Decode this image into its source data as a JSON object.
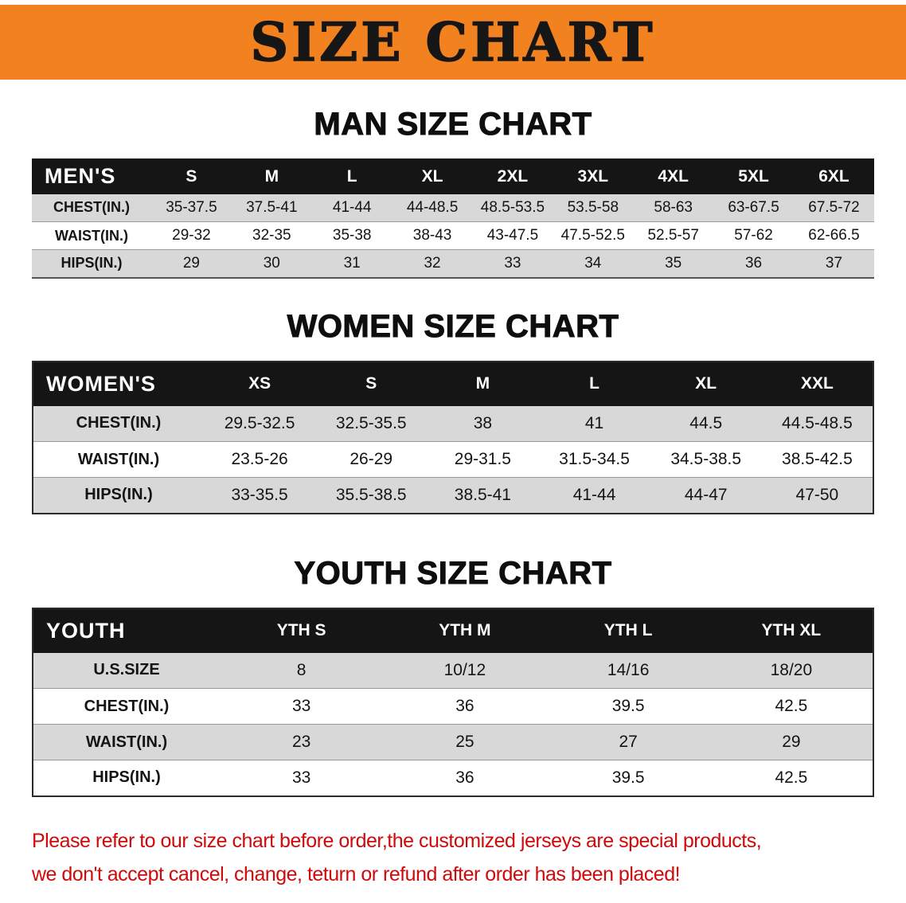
{
  "banner": {
    "title": "SIZE CHART"
  },
  "sections": {
    "men": {
      "heading": "MAN SIZE CHART",
      "table": {
        "header_label": "MEN'S",
        "columns": [
          "S",
          "M",
          "L",
          "XL",
          "2XL",
          "3XL",
          "4XL",
          "5XL",
          "6XL"
        ],
        "rows": [
          {
            "label": "CHEST(IN.)",
            "values": [
              "35-37.5",
              "37.5-41",
              "41-44",
              "44-48.5",
              "48.5-53.5",
              "53.5-58",
              "58-63",
              "63-67.5",
              "67.5-72"
            ]
          },
          {
            "label": "WAIST(IN.)",
            "values": [
              "29-32",
              "32-35",
              "35-38",
              "38-43",
              "43-47.5",
              "47.5-52.5",
              "52.5-57",
              "57-62",
              "62-66.5"
            ]
          },
          {
            "label": "HIPS(IN.)",
            "values": [
              "29",
              "30",
              "31",
              "32",
              "33",
              "34",
              "35",
              "36",
              "37"
            ]
          }
        ]
      }
    },
    "women": {
      "heading": "WOMEN SIZE CHART",
      "table": {
        "header_label": "WOMEN'S",
        "columns": [
          "XS",
          "S",
          "M",
          "L",
          "XL",
          "XXL"
        ],
        "rows": [
          {
            "label": "CHEST(IN.)",
            "values": [
              "29.5-32.5",
              "32.5-35.5",
              "38",
              "41",
              "44.5",
              "44.5-48.5"
            ]
          },
          {
            "label": "WAIST(IN.)",
            "values": [
              "23.5-26",
              "26-29",
              "29-31.5",
              "31.5-34.5",
              "34.5-38.5",
              "38.5-42.5"
            ]
          },
          {
            "label": "HIPS(IN.)",
            "values": [
              "33-35.5",
              "35.5-38.5",
              "38.5-41",
              "41-44",
              "44-47",
              "47-50"
            ]
          }
        ]
      }
    },
    "youth": {
      "heading": "YOUTH SIZE CHART",
      "table": {
        "header_label": "YOUTH",
        "columns": [
          "YTH S",
          "YTH M",
          "YTH L",
          "YTH XL"
        ],
        "rows": [
          {
            "label": "U.S.SIZE",
            "values": [
              "8",
              "10/12",
              "14/16",
              "18/20"
            ]
          },
          {
            "label": "CHEST(IN.)",
            "values": [
              "33",
              "36",
              "39.5",
              "42.5"
            ]
          },
          {
            "label": "WAIST(IN.)",
            "values": [
              "23",
              "25",
              "27",
              "29"
            ]
          },
          {
            "label": "HIPS(IN.)",
            "values": [
              "33",
              "36",
              "39.5",
              "42.5"
            ]
          }
        ]
      }
    }
  },
  "footer": {
    "line1": "Please refer to our size chart before order,the customized jerseys are special products,",
    "line2": "we don't accept cancel, change, teturn or refund after order has been placed!"
  },
  "colors": {
    "banner_orange": "#f28220",
    "header_black": "#151515",
    "row_gray": "#d8d8d8",
    "notice_red": "#cf0a0a"
  }
}
